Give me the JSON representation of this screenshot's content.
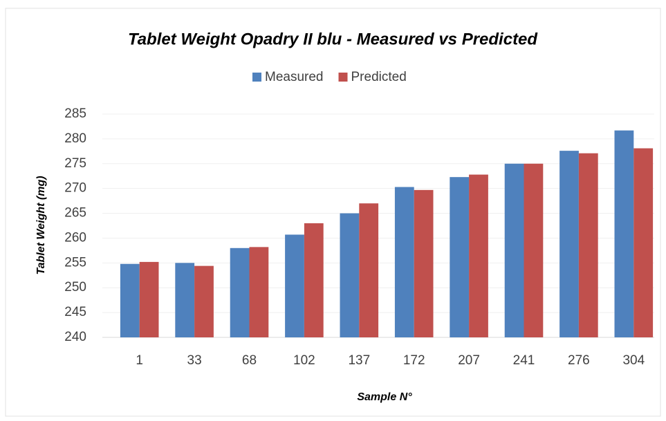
{
  "chart_data": {
    "type": "bar",
    "title": "Tablet Weight Opadry II blu - Measured vs Predicted",
    "x_label": "Sample N°",
    "y_label": "Tablet Weight (mg)",
    "categories": [
      "1",
      "33",
      "68",
      "102",
      "137",
      "172",
      "207",
      "241",
      "276",
      "304"
    ],
    "series": [
      {
        "name": "Measured",
        "color": "#4f81bd",
        "values": [
          254.8,
          255.0,
          258.0,
          260.7,
          265.0,
          270.3,
          272.3,
          275.0,
          277.6,
          281.7
        ]
      },
      {
        "name": "Predicted",
        "color": "#c0504d",
        "values": [
          255.2,
          254.4,
          258.2,
          263.0,
          267.0,
          269.7,
          272.8,
          275.0,
          277.1,
          278.1
        ]
      }
    ],
    "ylim": [
      240,
      285
    ],
    "yticks": [
      240,
      245,
      250,
      255,
      260,
      265,
      270,
      275,
      280,
      285
    ],
    "grid": true,
    "legend": "top"
  }
}
